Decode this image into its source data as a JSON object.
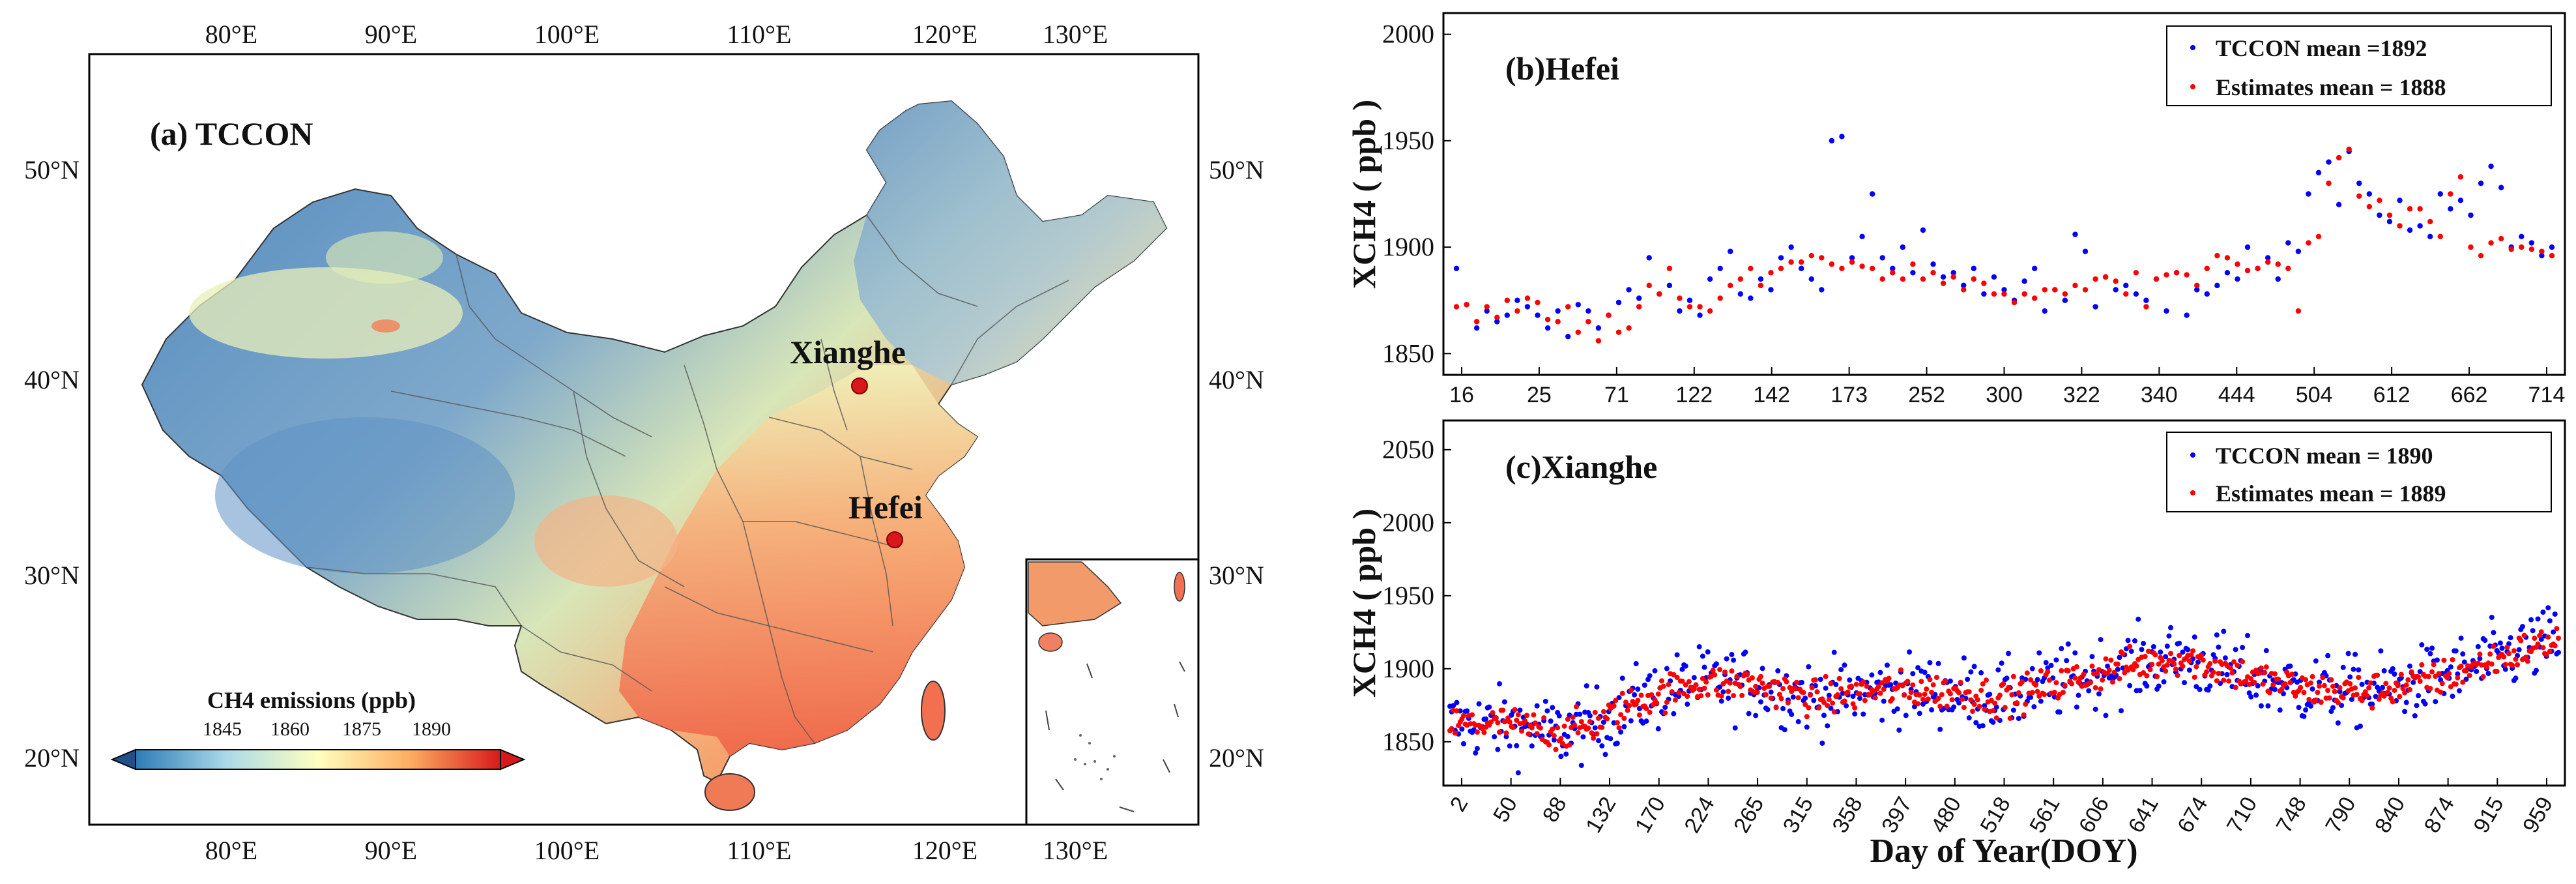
{
  "map": {
    "title": "(a) TCCON",
    "lon_labels": [
      "80°E",
      "90°E",
      "100°E",
      "110°E",
      "120°E",
      "130°E"
    ],
    "lat_labels": [
      "50°N",
      "40°N",
      "30°N",
      "20°N"
    ],
    "sites": [
      {
        "name": "Xianghe",
        "lon": 116.96,
        "lat": 39.75
      },
      {
        "name": "Hefei",
        "lon": 119.17,
        "lat": 31.9
      }
    ],
    "colorbar": {
      "title": "CH4 emissions (ppb)",
      "ticks": [
        "1845",
        "1860",
        "1875",
        "1890"
      ],
      "colors": [
        "#2c7bb6",
        "#abd9e9",
        "#ffffbf",
        "#fdae61",
        "#d7191c"
      ]
    }
  },
  "chart_data": [
    {
      "type": "scatter",
      "title": "(b)Hefei",
      "ylabel": "XCH4 ( ppb )",
      "xlabel": "",
      "ylim": [
        1840,
        2010
      ],
      "yticks": [
        1850,
        1900,
        1950,
        2000
      ],
      "x_tick_labels": [
        "16",
        "25",
        "71",
        "122",
        "142",
        "173",
        "252",
        "300",
        "322",
        "340",
        "444",
        "504",
        "612",
        "662",
        "714"
      ],
      "legend": [
        "TCCON mean =1892",
        "Estimates mean = 1888"
      ],
      "series": [
        {
          "name": "TCCON",
          "color": "#0000ff",
          "values": [
            1890,
            1873,
            1862,
            1870,
            1865,
            1868,
            1875,
            1872,
            1868,
            1862,
            1870,
            1858,
            1873,
            1870,
            1862,
            1868,
            1874,
            1880,
            1876,
            1895,
            1878,
            1882,
            1870,
            1875,
            1868,
            1885,
            1890,
            1898,
            1878,
            1876,
            1885,
            1880,
            1895,
            1900,
            1890,
            1885,
            1880,
            1950,
            1952,
            1895,
            1905,
            1925,
            1895,
            1890,
            1900,
            1888,
            1908,
            1892,
            1886,
            1888,
            1882,
            1890,
            1878,
            1886,
            1880,
            1875,
            1884,
            1890,
            1870,
            1880,
            1875,
            1906,
            1898,
            1872,
            1886,
            1880,
            1882,
            1878,
            1875,
            1885,
            1870,
            1888,
            1868,
            1880,
            1878,
            1882,
            1888,
            1885,
            1900,
            1890,
            1895,
            1885,
            1902,
            1898,
            1925,
            1935,
            1940,
            1920,
            1945,
            1930,
            1925,
            1915,
            1912,
            1922,
            1908,
            1910,
            1905,
            1925,
            1918,
            1922,
            1915,
            1930,
            1938,
            1928,
            1900,
            1905,
            1902,
            1896,
            1900
          ]
        },
        {
          "name": "Estimates",
          "color": "#ff0000",
          "values": [
            1872,
            1873,
            1865,
            1872,
            1867,
            1875,
            1870,
            1876,
            1874,
            1866,
            1865,
            1872,
            1860,
            1865,
            1856,
            1868,
            1860,
            1862,
            1872,
            1882,
            1878,
            1890,
            1876,
            1872,
            1872,
            1870,
            1876,
            1882,
            1885,
            1890,
            1882,
            1888,
            1890,
            1893,
            1893,
            1896,
            1895,
            1892,
            1890,
            1893,
            1891,
            1890,
            1885,
            1888,
            1885,
            1892,
            1885,
            1888,
            1883,
            1886,
            1880,
            1885,
            1883,
            1878,
            1878,
            1874,
            1878,
            1876,
            1880,
            1880,
            1878,
            1882,
            1880,
            1885,
            1886,
            1884,
            1878,
            1888,
            1872,
            1885,
            1887,
            1888,
            1887,
            1882,
            1890,
            1896,
            1895,
            1892,
            1889,
            1890,
            1893,
            1892,
            1890,
            1870,
            1902,
            1905,
            1930,
            1942,
            1946,
            1924,
            1919,
            1922,
            1915,
            1910,
            1918,
            1918,
            1912,
            1905,
            1925,
            1933,
            1900,
            1896,
            1902,
            1904,
            1899,
            1900,
            1899,
            1898,
            1896
          ]
        }
      ]
    },
    {
      "type": "scatter",
      "title": "(c)Xianghe",
      "ylabel": "XCH4 ( ppb )",
      "xlabel": "Day of Year(DOY)",
      "ylim": [
        1820,
        2070
      ],
      "yticks": [
        1850,
        1900,
        1950,
        2000,
        2050
      ],
      "x_tick_labels": [
        "2",
        "50",
        "88",
        "132",
        "170",
        "224",
        "265",
        "315",
        "358",
        "397",
        "480",
        "518",
        "561",
        "606",
        "641",
        "674",
        "710",
        "748",
        "790",
        "840",
        "874",
        "915",
        "959"
      ],
      "legend": [
        "TCCON mean = 1890",
        "Estimates mean = 1889"
      ],
      "n_points": 650,
      "trend_keys": [
        [
          0,
          1862
        ],
        [
          0.05,
          1862
        ],
        [
          0.1,
          1856
        ],
        [
          0.13,
          1862
        ],
        [
          0.17,
          1878
        ],
        [
          0.22,
          1890
        ],
        [
          0.27,
          1890
        ],
        [
          0.33,
          1880
        ],
        [
          0.4,
          1886
        ],
        [
          0.46,
          1884
        ],
        [
          0.5,
          1880
        ],
        [
          0.55,
          1890
        ],
        [
          0.6,
          1900
        ],
        [
          0.66,
          1908
        ],
        [
          0.72,
          1895
        ],
        [
          0.77,
          1886
        ],
        [
          0.82,
          1884
        ],
        [
          0.86,
          1888
        ],
        [
          0.9,
          1895
        ],
        [
          0.95,
          1908
        ],
        [
          1.0,
          1920
        ]
      ],
      "series": [
        {
          "name": "TCCON",
          "color": "#0000ff",
          "spread_ppb": 22
        },
        {
          "name": "Estimates",
          "color": "#ff0000",
          "spread_ppb": 11
        }
      ]
    }
  ]
}
